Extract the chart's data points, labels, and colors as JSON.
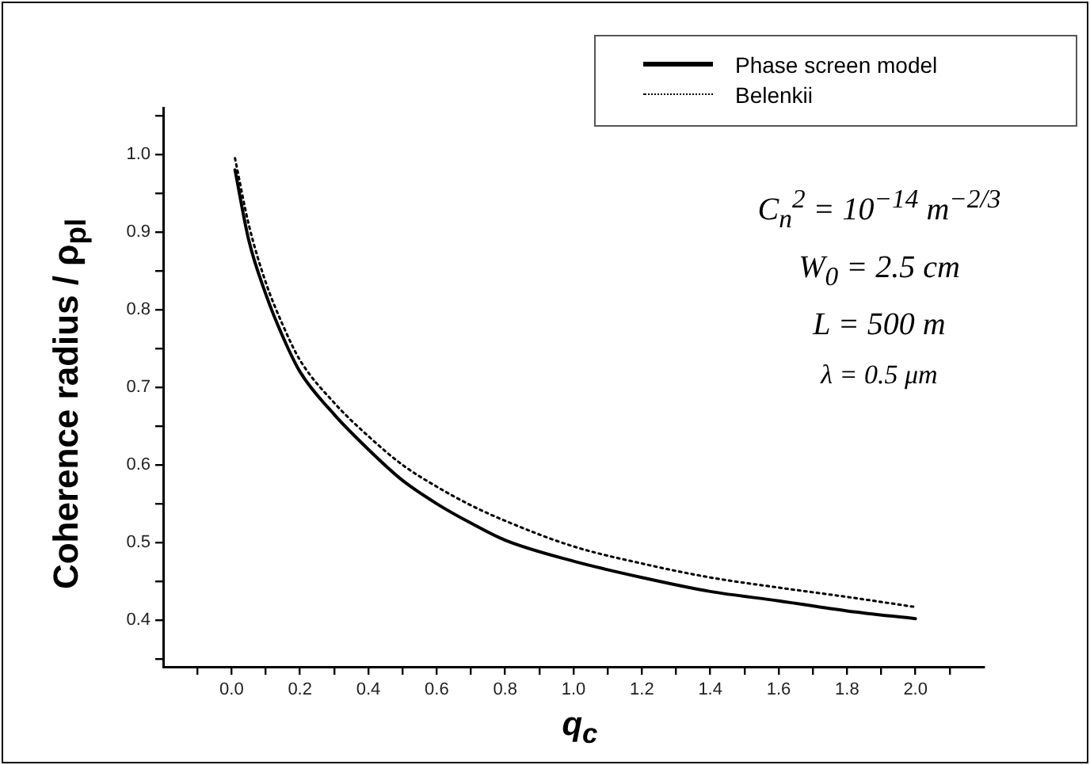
{
  "chart_data": {
    "type": "line",
    "xlabel": "q$_{c}$",
    "ylabel": "Coherence radius / ρ$_{pl}$",
    "xlim": [
      -0.2,
      2.2
    ],
    "ylim": [
      0.34,
      1.06
    ],
    "xticks": [
      {
        "value": -0.1,
        "label": null
      },
      {
        "value": 0.0,
        "label": "0.0"
      },
      {
        "value": 0.1,
        "label": null
      },
      {
        "value": 0.2,
        "label": "0.2"
      },
      {
        "value": 0.3,
        "label": null
      },
      {
        "value": 0.4,
        "label": "0.4"
      },
      {
        "value": 0.5,
        "label": null
      },
      {
        "value": 0.6,
        "label": "0.6"
      },
      {
        "value": 0.7,
        "label": null
      },
      {
        "value": 0.8,
        "label": "0.8"
      },
      {
        "value": 0.9,
        "label": null
      },
      {
        "value": 1.0,
        "label": "1.0"
      },
      {
        "value": 1.1,
        "label": null
      },
      {
        "value": 1.2,
        "label": "1.2"
      },
      {
        "value": 1.3,
        "label": null
      },
      {
        "value": 1.4,
        "label": "1.4"
      },
      {
        "value": 1.5,
        "label": null
      },
      {
        "value": 1.6,
        "label": "1.6"
      },
      {
        "value": 1.7,
        "label": null
      },
      {
        "value": 1.8,
        "label": "1.8"
      },
      {
        "value": 1.9,
        "label": null
      },
      {
        "value": 2.0,
        "label": "2.0"
      },
      {
        "value": 2.1,
        "label": null
      }
    ],
    "yticks": [
      {
        "value": 0.35,
        "label": null
      },
      {
        "value": 0.4,
        "label": "0.4"
      },
      {
        "value": 0.45,
        "label": null
      },
      {
        "value": 0.5,
        "label": "0.5"
      },
      {
        "value": 0.55,
        "label": null
      },
      {
        "value": 0.6,
        "label": "0.6"
      },
      {
        "value": 0.65,
        "label": null
      },
      {
        "value": 0.7,
        "label": "0.7"
      },
      {
        "value": 0.75,
        "label": null
      },
      {
        "value": 0.8,
        "label": "0.8"
      },
      {
        "value": 0.85,
        "label": null
      },
      {
        "value": 0.9,
        "label": "0.9"
      },
      {
        "value": 0.95,
        "label": null
      },
      {
        "value": 1.0,
        "label": "1.0"
      },
      {
        "value": 1.05,
        "label": null
      }
    ],
    "grid": false,
    "legend": "top right",
    "marker": "none",
    "series": [
      {
        "name": "Phase screen model",
        "color": "#000000",
        "line_style": "solid",
        "x": [
          0.01,
          0.05,
          0.1,
          0.15,
          0.2,
          0.3,
          0.4,
          0.5,
          0.6,
          0.7,
          0.8,
          1.0,
          1.2,
          1.4,
          1.6,
          1.8,
          2.0
        ],
        "values": [
          0.98,
          0.89,
          0.82,
          0.765,
          0.72,
          0.665,
          0.62,
          0.58,
          0.55,
          0.525,
          0.503,
          0.476,
          0.455,
          0.437,
          0.425,
          0.412,
          0.402
        ]
      },
      {
        "name": "Belenkii",
        "color": "#000000",
        "line_style": "dotted",
        "x": [
          0.01,
          0.05,
          0.1,
          0.15,
          0.2,
          0.3,
          0.4,
          0.5,
          0.6,
          0.7,
          0.8,
          1.0,
          1.2,
          1.4,
          1.6,
          1.8,
          2.0
        ],
        "values": [
          0.995,
          0.91,
          0.835,
          0.78,
          0.735,
          0.68,
          0.637,
          0.6,
          0.572,
          0.548,
          0.528,
          0.495,
          0.473,
          0.455,
          0.442,
          0.43,
          0.417
        ]
      }
    ],
    "annotations": [
      "C$_{n}$$^{2}$ = 10$^{−14}$ m$^{−2/3}$",
      "W$_{0}$ = 2.5 cm",
      "L = 500 m",
      "λ = 0.5 μm"
    ]
  }
}
